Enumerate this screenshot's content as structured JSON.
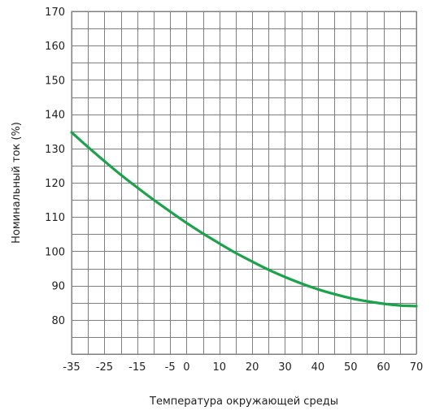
{
  "chart_data": {
    "type": "line",
    "title": "",
    "xlabel": "Температура окружающей среды",
    "ylabel": "Номинальный ток (%)",
    "xlim": [
      -35,
      70
    ],
    "ylim": [
      70,
      170
    ],
    "x_ticks": [
      "-35",
      "-25",
      "-15",
      "-5",
      "0",
      "10",
      "20",
      "30",
      "40",
      "50",
      "60",
      "70"
    ],
    "x_tick_values": [
      -35,
      -25,
      -15,
      -5,
      0,
      10,
      20,
      30,
      40,
      50,
      60,
      70
    ],
    "y_ticks": [
      "80",
      "90",
      "100",
      "110",
      "120",
      "130",
      "140",
      "150",
      "160",
      "170"
    ],
    "y_tick_values": [
      80,
      90,
      100,
      110,
      120,
      130,
      140,
      150,
      160,
      170
    ],
    "x_grid_step": 5,
    "y_grid_step": 5,
    "grid": true,
    "series": [
      {
        "color": "#1aa34a",
        "x": [
          -35,
          -30,
          -25,
          -20,
          -15,
          -10,
          -5,
          0,
          5,
          10,
          15,
          20,
          25,
          30,
          35,
          40,
          45,
          50,
          55,
          60,
          65,
          70
        ],
        "y": [
          134.7,
          130.4,
          126.3,
          122.3,
          118.6,
          115.0,
          111.6,
          108.3,
          105.2,
          102.3,
          99.5,
          97.0,
          94.6,
          92.5,
          90.6,
          88.9,
          87.5,
          86.3,
          85.4,
          84.7,
          84.2,
          84.0
        ]
      }
    ]
  }
}
